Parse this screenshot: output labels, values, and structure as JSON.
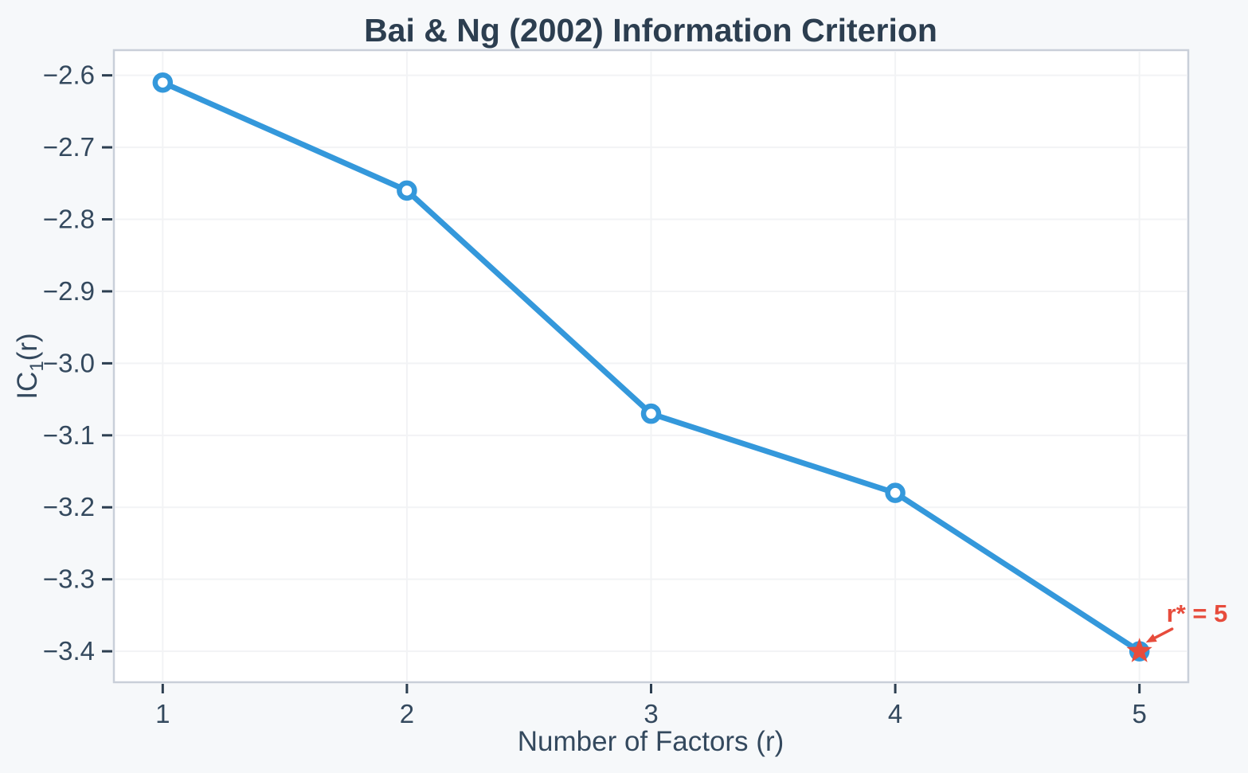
{
  "chart_data": {
    "type": "line",
    "title": "Bai & Ng (2002) Information Criterion",
    "xlabel": "Number of Factors (r)",
    "ylabel": {
      "pre": "IC",
      "sub": "1",
      "post": "(r)"
    },
    "x": [
      1,
      2,
      3,
      4,
      5
    ],
    "series": [
      {
        "name": "IC1(r)",
        "values": [
          -2.61,
          -2.76,
          -3.07,
          -3.18,
          -3.4
        ]
      }
    ],
    "best_factor": {
      "x": 5,
      "y": -3.4,
      "label": "r* = 5",
      "marker": "star"
    },
    "x_ticks": [
      {
        "value": 1,
        "label": "1"
      },
      {
        "value": 2,
        "label": "2"
      },
      {
        "value": 3,
        "label": "3"
      },
      {
        "value": 4,
        "label": "4"
      },
      {
        "value": 5,
        "label": "5"
      }
    ],
    "y_ticks": [
      {
        "value": -2.6,
        "label": "−2.6"
      },
      {
        "value": -2.7,
        "label": "−2.7"
      },
      {
        "value": -2.8,
        "label": "−2.8"
      },
      {
        "value": -2.9,
        "label": "−2.9"
      },
      {
        "value": -3.0,
        "label": "−3.0"
      },
      {
        "value": -3.1,
        "label": "−3.1"
      },
      {
        "value": -3.2,
        "label": "−3.2"
      },
      {
        "value": -3.3,
        "label": "−3.3"
      },
      {
        "value": -3.4,
        "label": "−3.4"
      }
    ],
    "xlim": [
      0.8,
      5.2
    ],
    "ylim": [
      -3.443,
      -2.565
    ],
    "grid": true,
    "legend": "none",
    "colors": {
      "line": "#3498db",
      "marker_fill": "#ffffff",
      "highlight": "#e74c3c",
      "title_text": "#2c3e50",
      "axis_text": "#34495e",
      "tick_mark": "#2c3e50",
      "grid_line": "#f2f3f5",
      "plot_border": "#c9cfd9",
      "figure_background": "#f6f8fa",
      "plot_background": "#ffffff"
    }
  }
}
